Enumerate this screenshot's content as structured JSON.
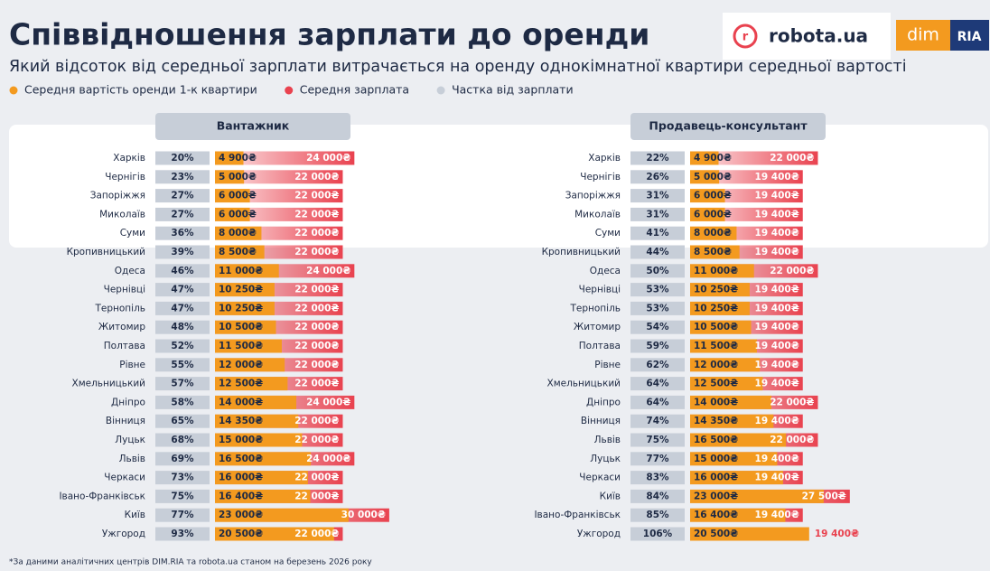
{
  "title": "Співвідношення зарплати до оренди",
  "subtitle": "Який відсоток від середньої зарплати витрачається на оренду однокімнатної квартири середньої вартості",
  "footnote": "*За даними аналітичних центрів DIM.RIA та robota.ua станом на березень 2026 року",
  "logos": [
    "robota.ua",
    "dim",
    "RIA"
  ],
  "chart_data": {
    "type": "salary-rent",
    "series": [
      {
        "name": "Середня вартість оренди 1-к квартири",
        "color": "#f39a1f"
      },
      {
        "name": "Середня зарплата",
        "color": "#e9424f"
      },
      {
        "name": "Частка від зарплати",
        "color": "#c7ced8"
      }
    ],
    "panels": [
      {
        "title": "Вантажник",
        "categories": [
          "Харків",
          "Чернігів",
          "Запоріжжя",
          "Миколаїв",
          "Суми",
          "Кропивницький",
          "Одеса",
          "Чернівці",
          "Тернопіль",
          "Житомир",
          "Полтава",
          "Рівне",
          "Хмельницький",
          "Дніпро",
          "Вінниця",
          "Луцьк",
          "Львів",
          "Черкаси",
          "Івано-Франківськ",
          "Київ",
          "Ужгород"
        ],
        "share": {
          "values": [
            20,
            23,
            27,
            27,
            36,
            39,
            46,
            47,
            47,
            48,
            52,
            55,
            57,
            58,
            65,
            68,
            69,
            73,
            75,
            77,
            93
          ],
          "value_labels": [
            "20%",
            "23%",
            "27%",
            "27%",
            "36%",
            "39%",
            "46%",
            "47%",
            "47%",
            "48%",
            "52%",
            "55%",
            "57%",
            "58%",
            "65%",
            "68%",
            "69%",
            "73%",
            "75%",
            "77%",
            "93%"
          ]
        },
        "rent": {
          "values": [
            4900,
            5000,
            6000,
            6000,
            8000,
            8500,
            11000,
            10250,
            10250,
            10500,
            11500,
            12000,
            12500,
            14000,
            14350,
            15000,
            16500,
            16000,
            16400,
            23000,
            20500
          ],
          "value_labels": [
            "4 900₴",
            "5 000₴",
            "6 000₴",
            "6 000₴",
            "8 000₴",
            "8 500₴",
            "11 000₴",
            "10 250₴",
            "10 250₴",
            "10 500₴",
            "11 500₴",
            "12 000₴",
            "12 500₴",
            "14 000₴",
            "14 350₴",
            "15 000₴",
            "16 500₴",
            "16 000₴",
            "16 400₴",
            "23 000₴",
            "20 500₴"
          ]
        },
        "salary": {
          "values": [
            24000,
            22000,
            22000,
            22000,
            22000,
            22000,
            24000,
            22000,
            22000,
            22000,
            22000,
            22000,
            22000,
            24000,
            22000,
            22000,
            24000,
            22000,
            22000,
            30000,
            22000
          ],
          "value_labels": [
            "24 000₴",
            "22 000₴",
            "22 000₴",
            "22 000₴",
            "22 000₴",
            "22 000₴",
            "24 000₴",
            "22 000₴",
            "22 000₴",
            "22 000₴",
            "22 000₴",
            "22 000₴",
            "22 000₴",
            "24 000₴",
            "22 000₴",
            "22 000₴",
            "24 000₴",
            "22 000₴",
            "22 000₴",
            "30 000₴",
            "22 000₴"
          ]
        }
      },
      {
        "title": "Продавець-консультант",
        "categories": [
          "Харків",
          "Чернігів",
          "Запоріжжя",
          "Миколаїв",
          "Суми",
          "Кропивницький",
          "Одеса",
          "Чернівці",
          "Тернопіль",
          "Житомир",
          "Полтава",
          "Рівне",
          "Хмельницький",
          "Дніпро",
          "Вінниця",
          "Львів",
          "Луцьк",
          "Черкаси",
          "Київ",
          "Івано-Франківськ",
          "Ужгород"
        ],
        "share": {
          "values": [
            22,
            26,
            31,
            31,
            41,
            44,
            50,
            53,
            53,
            54,
            59,
            62,
            64,
            64,
            74,
            75,
            77,
            83,
            84,
            85,
            106
          ],
          "value_labels": [
            "22%",
            "26%",
            "31%",
            "31%",
            "41%",
            "44%",
            "50%",
            "53%",
            "53%",
            "54%",
            "59%",
            "62%",
            "64%",
            "64%",
            "74%",
            "75%",
            "77%",
            "83%",
            "84%",
            "85%",
            "106%"
          ]
        },
        "rent": {
          "values": [
            4900,
            5000,
            6000,
            6000,
            8000,
            8500,
            11000,
            10250,
            10250,
            10500,
            11500,
            12000,
            12500,
            14000,
            14350,
            16500,
            15000,
            16000,
            23000,
            16400,
            20500
          ],
          "value_labels": [
            "4 900₴",
            "5 000₴",
            "6 000₴",
            "6 000₴",
            "8 000₴",
            "8 500₴",
            "11 000₴",
            "10 250₴",
            "10 250₴",
            "10 500₴",
            "11 500₴",
            "12 000₴",
            "12 500₴",
            "14 000₴",
            "14 350₴",
            "16 500₴",
            "15 000₴",
            "16 000₴",
            "23 000₴",
            "16 400₴",
            "20 500₴"
          ]
        },
        "salary": {
          "values": [
            22000,
            19400,
            19400,
            19400,
            19400,
            19400,
            22000,
            19400,
            19400,
            19400,
            19400,
            19400,
            19400,
            22000,
            19400,
            22000,
            19400,
            19400,
            27500,
            19400,
            19400
          ],
          "value_labels": [
            "22 000₴",
            "19 400₴",
            "19 400₴",
            "19 400₴",
            "19 400₴",
            "19 400₴",
            "22 000₴",
            "19 400₴",
            "19 400₴",
            "19 400₴",
            "19 400₴",
            "19 400₴",
            "19 400₴",
            "22 000₴",
            "19 400₴",
            "22 000₴",
            "19 400₴",
            "19 400₴",
            "27 500₴",
            "19 400₴",
            "19 400₴"
          ]
        }
      }
    ]
  }
}
